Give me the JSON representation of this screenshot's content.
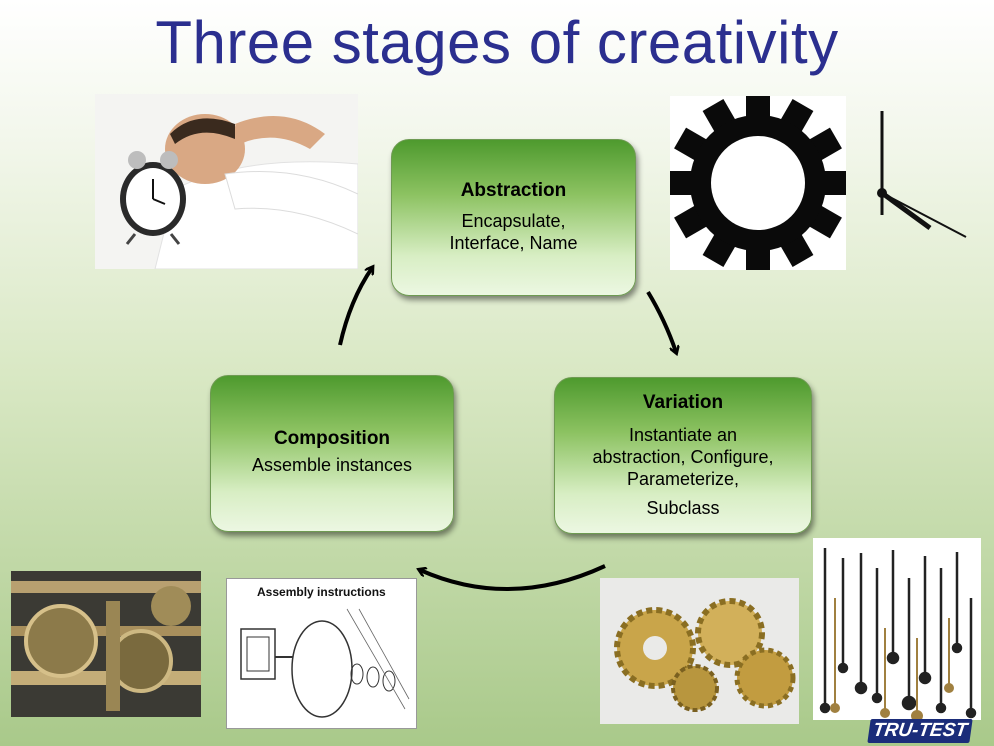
{
  "slide": {
    "title": "Three stages of creativity"
  },
  "cycle": {
    "abstraction": {
      "heading": "Abstraction",
      "line1": "Encapsulate,",
      "line2": "Interface, Name"
    },
    "variation": {
      "heading": "Variation",
      "line1": "Instantiate an",
      "line2": "abstraction, Configure,",
      "line3": "Parameterize,",
      "line4": "Subclass"
    },
    "composition": {
      "heading": "Composition",
      "line1": "Assemble instances"
    }
  },
  "images": {
    "assembly_caption": "Assembly instructions",
    "logo_text": "TRU-TEST"
  },
  "colors": {
    "title": "#2b2f8f",
    "box_top": "#4e9a2e",
    "box_bottom": "#ecf7e2"
  }
}
